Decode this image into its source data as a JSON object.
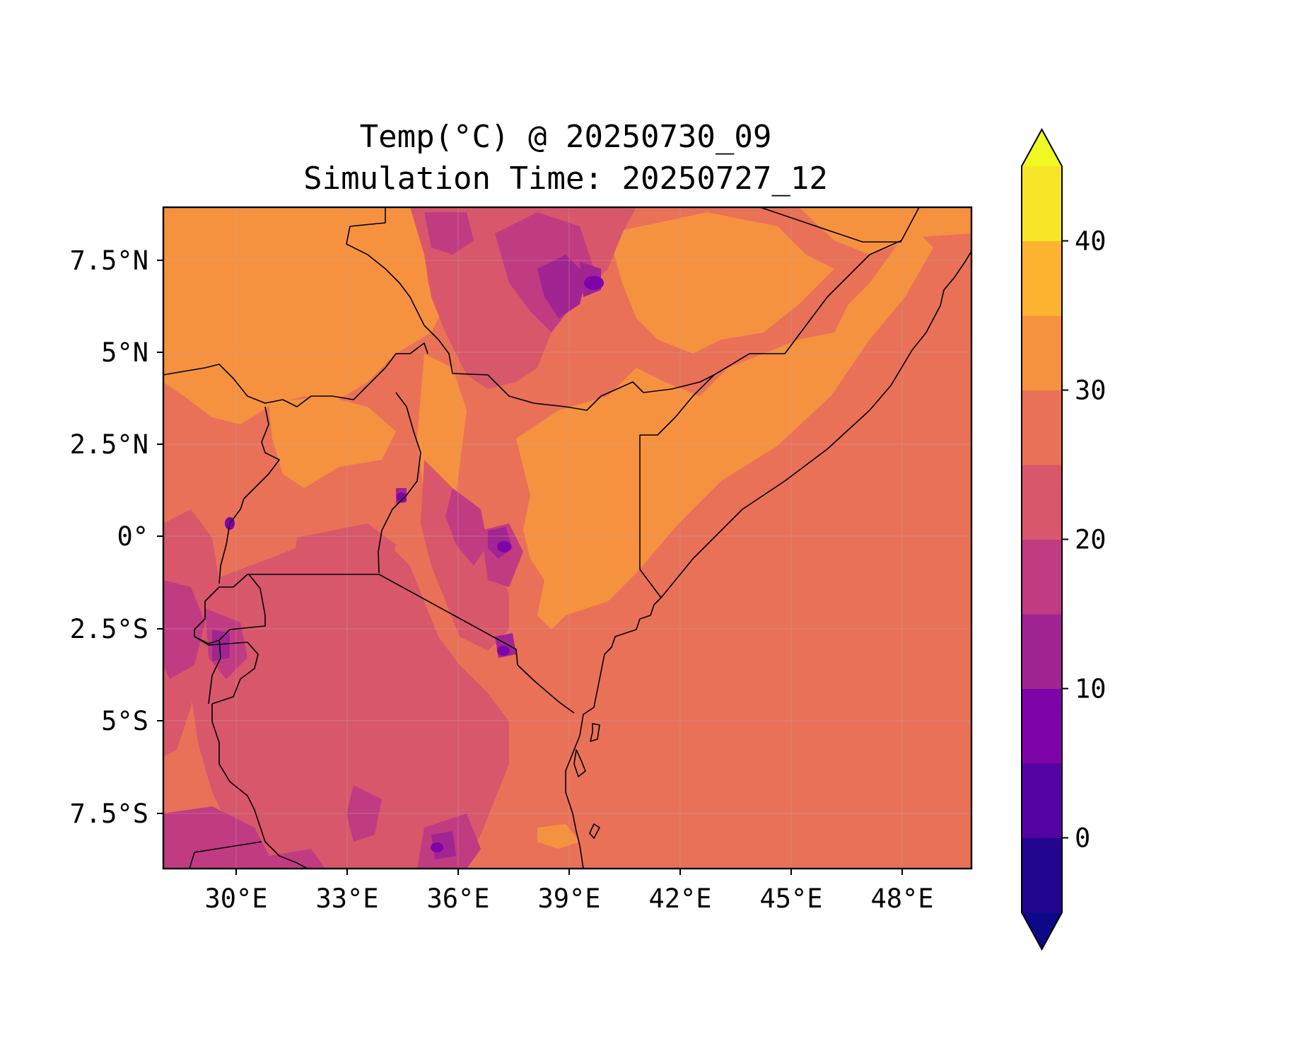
{
  "figure": {
    "title_line1": "Temp(°C) @ 20250730_09",
    "title_line2": "Simulation Time: 20250727_12"
  },
  "map": {
    "region": "East Africa",
    "variable": "Temp(°C)",
    "lon_ticks": [
      "30°E",
      "33°E",
      "36°E",
      "39°E",
      "42°E",
      "45°E",
      "48°E"
    ],
    "lat_ticks": [
      "7.5°N",
      "5°N",
      "2.5°N",
      "0°",
      "2.5°S",
      "5°S",
      "7.5°S"
    ],
    "lon_values": [
      30,
      33,
      36,
      39,
      42,
      45,
      48
    ],
    "lat_values": [
      7.5,
      5,
      2.5,
      0,
      -2.5,
      -5,
      -7.5
    ],
    "lon_range": [
      28,
      50
    ],
    "lat_range": [
      -9,
      9
    ],
    "gridlines": true,
    "features": [
      "country borders",
      "coastline"
    ]
  },
  "colorbar": {
    "ticks": [
      "40",
      "30",
      "20",
      "10",
      "0"
    ],
    "tick_values": [
      40,
      30,
      20,
      10,
      0
    ],
    "range": [
      -5,
      45
    ],
    "extend": "both",
    "levels": [
      -5,
      0,
      5,
      10,
      15,
      20,
      25,
      30,
      35,
      40,
      45
    ],
    "colors": [
      "#220690",
      "#5302a3",
      "#7e03a8",
      "#a12493",
      "#c13b82",
      "#d8576b",
      "#e97158",
      "#f6923f",
      "#fdb32f",
      "#f8e527"
    ],
    "extend_low_color": "#0d0887",
    "extend_high_color": "#f0f921",
    "cmap": "plasma"
  },
  "colors": {
    "ocean": "#e97158",
    "warm_land": "#f6923f",
    "highland": "#d8576b",
    "high_peaks": "#a12493",
    "border": "#000000"
  }
}
